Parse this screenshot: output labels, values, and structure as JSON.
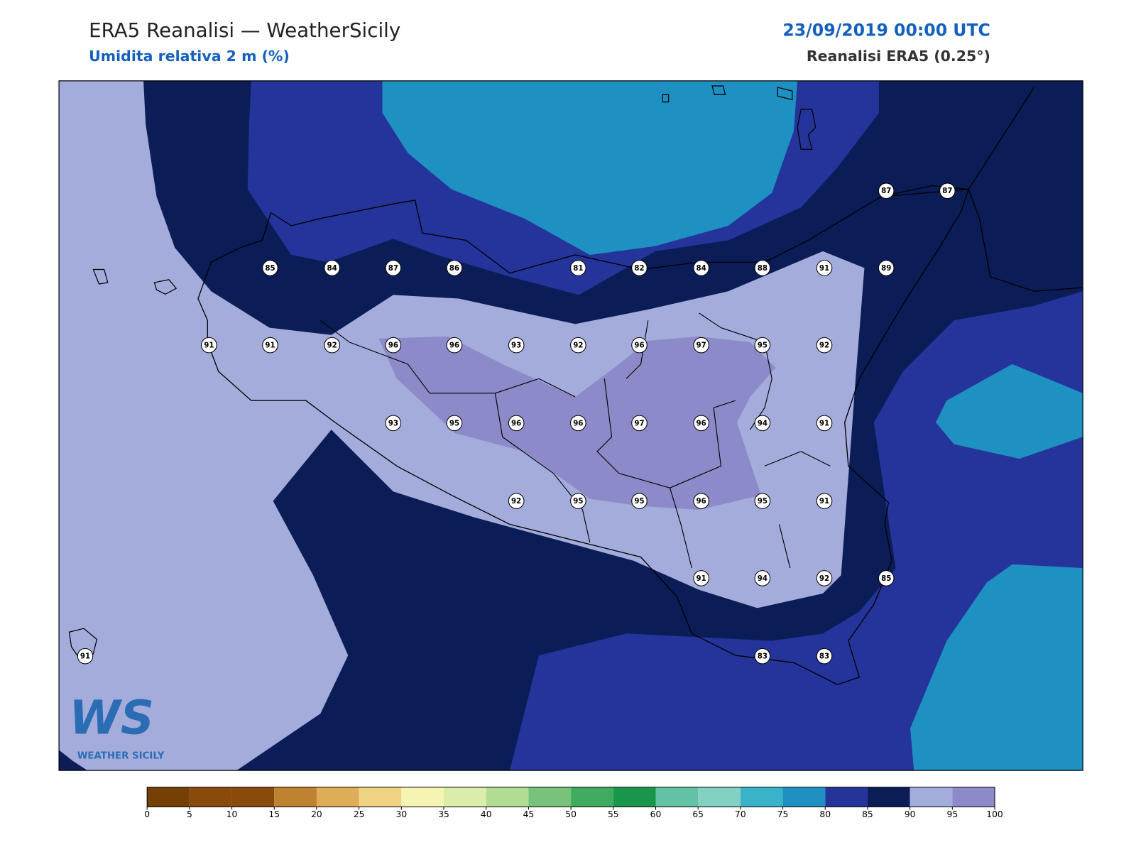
{
  "header": {
    "title": "ERA5 Reanalisi — WeatherSicily",
    "subtitle": "Umidita relativa 2 m (%)",
    "date": "23/09/2019 00:00 UTC",
    "source": "Reanalisi ERA5 (0.25°)"
  },
  "map": {
    "station_labels": [
      87,
      87,
      85,
      84,
      87,
      86,
      81,
      82,
      84,
      88,
      91,
      89,
      91,
      91,
      92,
      96,
      96,
      93,
      92,
      96,
      97,
      95,
      92,
      93,
      95,
      96,
      96,
      97,
      96,
      94,
      91,
      92,
      95,
      95,
      96,
      95,
      91,
      91,
      94,
      92,
      85,
      83,
      83,
      91
    ]
  },
  "colorbar": {
    "ticks": [
      0,
      5,
      10,
      15,
      20,
      25,
      30,
      35,
      40,
      45,
      50,
      55,
      60,
      65,
      70,
      75,
      80,
      85,
      90,
      95,
      100
    ],
    "colors": [
      "#744006",
      "#8a4a0c",
      "#8a4a0c",
      "#bf8230",
      "#dfad58",
      "#efd380",
      "#f6f4b3",
      "#dbedab",
      "#b0dd93",
      "#79c27a",
      "#3fab5f",
      "#17964c",
      "#63c2a5",
      "#83d1c1",
      "#3ab2c8",
      "#1e90c2",
      "#24349a",
      "#0b1d57",
      "#a4acdc",
      "#8c8ac8"
    ]
  },
  "logo": {
    "mark": "WS",
    "name": "WEATHER SICILY"
  }
}
